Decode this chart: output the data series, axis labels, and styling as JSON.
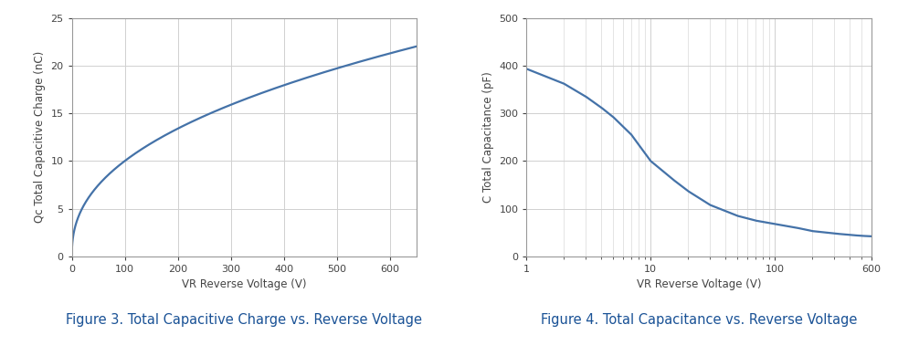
{
  "fig3": {
    "title": "Figure 3. Total Capacitive Charge vs. Reverse Voltage",
    "xlabel": "VR Reverse Voltage (V)",
    "ylabel": "Qc Total Capacitive Charge (nC)",
    "xlim": [
      0,
      650
    ],
    "ylim": [
      0,
      25
    ],
    "xticks": [
      0,
      100,
      200,
      300,
      400,
      500,
      600
    ],
    "yticks": [
      0,
      5,
      10,
      15,
      20,
      25
    ],
    "line_color": "#4472a8",
    "line_width": 1.6
  },
  "fig4": {
    "title": "Figure 4. Total Capacitance vs. Reverse Voltage",
    "xlabel": "VR Reverse Voltage (V)",
    "ylabel": "C Total Capacitance (pF)",
    "xlim_log": [
      1,
      600
    ],
    "ylim": [
      0,
      500
    ],
    "yticks": [
      0,
      100,
      200,
      300,
      400,
      500
    ],
    "line_color": "#4472a8",
    "line_width": 1.6
  },
  "background_color": "#ffffff",
  "grid_color": "#d0d0d0",
  "tick_color": "#444444",
  "spine_color": "#999999",
  "caption_color": "#1a5296",
  "caption_fontsize": 10.5,
  "axis_label_fontsize": 8.5,
  "tick_label_fontsize": 8
}
